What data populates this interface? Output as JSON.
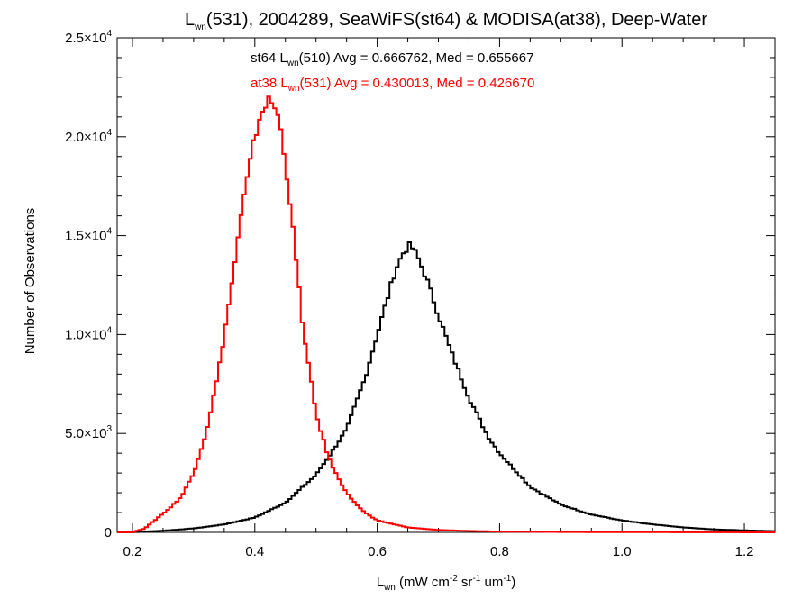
{
  "chart_data": {
    "type": "line",
    "title": {
      "base": "L",
      "sub": "wn",
      "rest": "(531), 2004289, SeaWiFS(st64) & MODISA(at38), Deep-Water"
    },
    "xlabel": {
      "base": "L",
      "sub": "wn",
      "units_a": " (mW cm",
      "sup1": "-2",
      "units_b": " sr",
      "sup2": "-1",
      "units_c": " um",
      "sup3": "-1",
      "units_d": ")"
    },
    "ylabel": "Number of Observations",
    "xlim": [
      0.175,
      1.25
    ],
    "ylim": [
      0,
      25000
    ],
    "xticks": [
      {
        "value": 0.2,
        "label": "0.2"
      },
      {
        "value": 0.4,
        "label": "0.4"
      },
      {
        "value": 0.6,
        "label": "0.6"
      },
      {
        "value": 0.8,
        "label": "0.8"
      },
      {
        "value": 1.0,
        "label": "1.0"
      },
      {
        "value": 1.2,
        "label": "1.2"
      }
    ],
    "yticks": [
      {
        "value": 0,
        "mant": "0",
        "times": "",
        "exp": ""
      },
      {
        "value": 5000,
        "mant": "5.0",
        "times": "×10",
        "exp": "3"
      },
      {
        "value": 10000,
        "mant": "1.0",
        "times": "×10",
        "exp": "4"
      },
      {
        "value": 15000,
        "mant": "1.5",
        "times": "×10",
        "exp": "4"
      },
      {
        "value": 20000,
        "mant": "2.0",
        "times": "×10",
        "exp": "4"
      },
      {
        "value": 25000,
        "mant": "2.5",
        "times": "×10",
        "exp": "4"
      }
    ],
    "annotations": [
      {
        "color": "#000000",
        "a": "st64 L",
        "sub": "wn",
        "b": "(510) Avg = 0.666762, Med = 0.655667"
      },
      {
        "color": "#ff0000",
        "a": "at38 L",
        "sub": "wn",
        "b": "(531) Avg = 0.430013, Med = 0.426670"
      }
    ],
    "series": [
      {
        "color": "#000000",
        "step": "histogram",
        "x": [
          0.175,
          0.2,
          0.25,
          0.3,
          0.35,
          0.4,
          0.45,
          0.5,
          0.52,
          0.55,
          0.58,
          0.6,
          0.62,
          0.63,
          0.645,
          0.655,
          0.665,
          0.68,
          0.7,
          0.72,
          0.75,
          0.78,
          0.8,
          0.85,
          0.9,
          0.95,
          1.0,
          1.05,
          1.1,
          1.15,
          1.2,
          1.25
        ],
        "y": [
          0,
          10,
          80,
          200,
          400,
          750,
          1500,
          2900,
          3800,
          5200,
          7800,
          10000,
          12200,
          13300,
          14300,
          14500,
          14000,
          12900,
          11000,
          9200,
          6800,
          4900,
          4000,
          2300,
          1400,
          900,
          600,
          400,
          250,
          150,
          100,
          60
        ]
      },
      {
        "color": "#ff0000",
        "step": "histogram",
        "x": [
          0.175,
          0.2,
          0.22,
          0.24,
          0.26,
          0.28,
          0.3,
          0.32,
          0.34,
          0.36,
          0.38,
          0.4,
          0.41,
          0.42,
          0.43,
          0.44,
          0.45,
          0.46,
          0.47,
          0.48,
          0.5,
          0.52,
          0.54,
          0.56,
          0.58,
          0.6,
          0.65,
          0.7,
          0.75,
          0.8,
          0.9,
          1.0,
          1.25
        ],
        "y": [
          0,
          0,
          200,
          700,
          1200,
          1800,
          3000,
          5000,
          8000,
          12000,
          16500,
          20000,
          21200,
          21800,
          21700,
          20800,
          18800,
          16000,
          13000,
          10000,
          6000,
          3800,
          2500,
          1600,
          1000,
          600,
          250,
          120,
          70,
          40,
          20,
          10,
          0
        ]
      }
    ]
  }
}
